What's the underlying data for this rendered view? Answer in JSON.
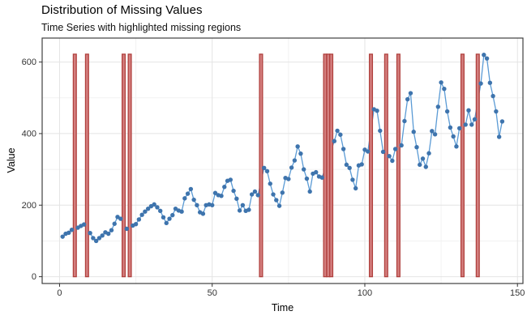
{
  "chart_data": {
    "type": "line+scatter",
    "title": "Distribution of Missing Values",
    "subtitle": "Time Series with highlighted missing regions",
    "xlabel": "Time",
    "ylabel": "Value",
    "x_ticks": [
      0,
      50,
      100,
      150
    ],
    "x_minor_ticks": [
      25,
      75,
      125
    ],
    "y_ticks": [
      0,
      200,
      400,
      600
    ],
    "y_minor_ticks": [
      100,
      300,
      500
    ],
    "xlim": [
      -5.7,
      151.8
    ],
    "ylim": [
      -19,
      667
    ],
    "grid": true,
    "legend": "none",
    "t_start": 1,
    "values": [
      112,
      120,
      123,
      131,
      null,
      137,
      142,
      146,
      null,
      122,
      108,
      100,
      108,
      115,
      124,
      120,
      130,
      148,
      167,
      162,
      null,
      134,
      null,
      143,
      147,
      160,
      173,
      182,
      190,
      197,
      202,
      194,
      184,
      166,
      150,
      162,
      172,
      190,
      185,
      182,
      219,
      232,
      245,
      215,
      200,
      180,
      176,
      200,
      202,
      200,
      234,
      228,
      226,
      251,
      268,
      271,
      240,
      218,
      185,
      200,
      184,
      187,
      230,
      238,
      228,
      null,
      304,
      295,
      260,
      230,
      214,
      198,
      235,
      276,
      273,
      305,
      325,
      364,
      344,
      300,
      274,
      238,
      288,
      292,
      280,
      277,
      null,
      null,
      null,
      379,
      408,
      397,
      357,
      313,
      304,
      271,
      247,
      311,
      314,
      355,
      350,
      null,
      468,
      464,
      408,
      349,
      null,
      337,
      324,
      357,
      null,
      367,
      435,
      496,
      513,
      405,
      362,
      313,
      330,
      307,
      345,
      407,
      398,
      475,
      543,
      525,
      462,
      417,
      392,
      364,
      415,
      null,
      425,
      465,
      425,
      440,
      null,
      540,
      620,
      610,
      542,
      505,
      462,
      391,
      434
    ],
    "missing_times": [
      5,
      9,
      21,
      23,
      66,
      87,
      88,
      89,
      102,
      107,
      111,
      132,
      137
    ],
    "missing_bar": {
      "ymin": 0,
      "ymax": 622
    },
    "colors": {
      "line": "#5B9BD5",
      "point": "#3E74AD",
      "missing_fill": "#D47F7F",
      "missing_stroke": "#B0413E",
      "grid_major": "#E4E4E4",
      "grid_minor": "#F2F2F2",
      "panel_border": "#3F3F3F",
      "tick": "#333333",
      "tick_label": "#333333",
      "text": "#000000"
    }
  }
}
